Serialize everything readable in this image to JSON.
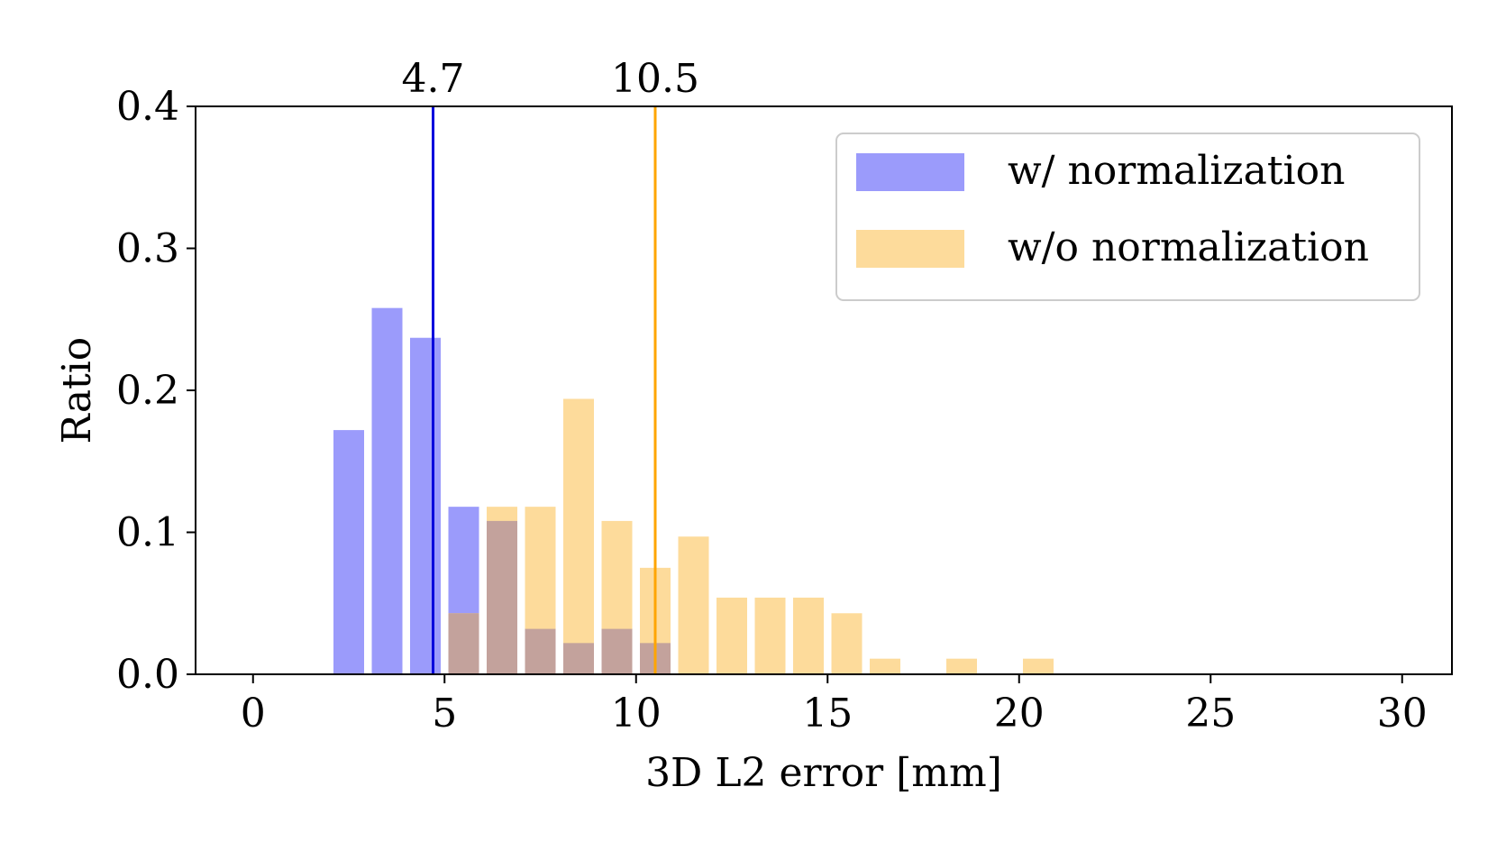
{
  "chart_data": {
    "type": "bar",
    "xlabel": "3D L2 error [mm]",
    "ylabel": "Ratio",
    "xlim": [
      -1.5,
      31.3
    ],
    "ylim": [
      0,
      0.4
    ],
    "xticks": [
      0,
      5,
      10,
      15,
      20,
      25,
      30
    ],
    "xtick_labels": [
      "0",
      "5",
      "10",
      "15",
      "20",
      "25",
      "30"
    ],
    "yticks": [
      0.0,
      0.1,
      0.2,
      0.3,
      0.4
    ],
    "ytick_labels": [
      "0.0",
      "0.1",
      "0.2",
      "0.3",
      "0.4"
    ],
    "grid": false,
    "legend_position": "top-right",
    "series": [
      {
        "name": "w/ normalization",
        "color": "#9b9bfb",
        "x": [
          2.5,
          3.5,
          4.5,
          5.5,
          6.5,
          7.5,
          8.5,
          9.5,
          10.5
        ],
        "values": [
          0.172,
          0.258,
          0.237,
          0.118,
          0.108,
          0.032,
          0.022,
          0.032,
          0.022
        ]
      },
      {
        "name": "w/o normalization",
        "color": "#fddb9b",
        "x": [
          5.5,
          6.5,
          7.5,
          8.5,
          9.5,
          10.5,
          11.5,
          12.5,
          13.5,
          14.5,
          15.5,
          16.5,
          18.5,
          20.5
        ],
        "values": [
          0.043,
          0.118,
          0.118,
          0.194,
          0.108,
          0.075,
          0.097,
          0.054,
          0.054,
          0.054,
          0.043,
          0.011,
          0.011,
          0.011
        ]
      }
    ],
    "overlap_color": "#c3a29c",
    "mean_lines": [
      {
        "value": 4.7,
        "label": "4.7",
        "color": "#0000dd"
      },
      {
        "value": 10.5,
        "label": "10.5",
        "color": "#ffa500"
      }
    ]
  }
}
